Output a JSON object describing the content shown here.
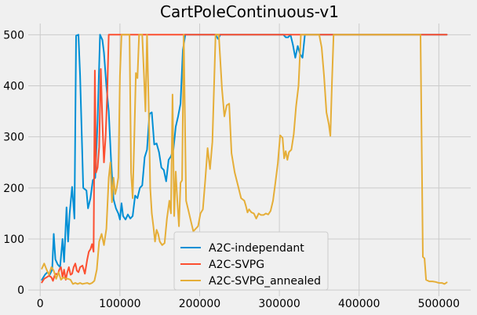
{
  "chart_data": {
    "type": "line",
    "title": "CartPoleContinuous-v1",
    "xlabel": "",
    "ylabel": "",
    "xlim": [
      -15000,
      540000
    ],
    "ylim": [
      -12,
      522
    ],
    "xticks": [
      0,
      100000,
      200000,
      300000,
      400000,
      500000
    ],
    "xtick_labels": [
      "0",
      "100000",
      "200000",
      "300000",
      "400000",
      "500000"
    ],
    "yticks": [
      0,
      100,
      200,
      300,
      400,
      500
    ],
    "ytick_labels": [
      "0",
      "100",
      "200",
      "300",
      "400",
      "500"
    ],
    "grid": true,
    "legend_position": "bottom-center",
    "series": [
      {
        "name": "A2C-independant",
        "color": "#008fd5",
        "points": [
          [
            2000,
            20
          ],
          [
            6000,
            30
          ],
          [
            9000,
            35
          ],
          [
            12000,
            30
          ],
          [
            15000,
            40
          ],
          [
            17000,
            110
          ],
          [
            19000,
            60
          ],
          [
            22000,
            50
          ],
          [
            25000,
            45
          ],
          [
            28000,
            100
          ],
          [
            30000,
            55
          ],
          [
            33000,
            162
          ],
          [
            35000,
            95
          ],
          [
            37000,
            150
          ],
          [
            40000,
            202
          ],
          [
            43000,
            140
          ],
          [
            45000,
            498
          ],
          [
            48000,
            500
          ],
          [
            50000,
            420
          ],
          [
            54000,
            200
          ],
          [
            58000,
            195
          ],
          [
            60000,
            160
          ],
          [
            63000,
            180
          ],
          [
            66000,
            215
          ],
          [
            69000,
            220
          ],
          [
            72000,
            330
          ],
          [
            75000,
            500
          ],
          [
            78000,
            490
          ],
          [
            80000,
            465
          ],
          [
            83000,
            400
          ],
          [
            86000,
            350
          ],
          [
            89000,
            250
          ],
          [
            92000,
            178
          ],
          [
            95000,
            160
          ],
          [
            98000,
            150
          ],
          [
            100000,
            138
          ],
          [
            102000,
            170
          ],
          [
            104000,
            145
          ],
          [
            107000,
            138
          ],
          [
            110000,
            148
          ],
          [
            113000,
            140
          ],
          [
            116000,
            145
          ],
          [
            119000,
            185
          ],
          [
            122000,
            180
          ],
          [
            125000,
            200
          ],
          [
            128000,
            205
          ],
          [
            131000,
            260
          ],
          [
            134000,
            275
          ],
          [
            137000,
            345
          ],
          [
            140000,
            348
          ],
          [
            143000,
            285
          ],
          [
            146000,
            287
          ],
          [
            149000,
            270
          ],
          [
            152000,
            240
          ],
          [
            155000,
            235
          ],
          [
            158000,
            213
          ],
          [
            161000,
            255
          ],
          [
            164000,
            262
          ],
          [
            167000,
            275
          ],
          [
            170000,
            320
          ],
          [
            173000,
            340
          ],
          [
            176000,
            365
          ],
          [
            179000,
            470
          ],
          [
            182000,
            500
          ],
          [
            185000,
            500
          ],
          [
            220000,
            500
          ],
          [
            223000,
            492
          ],
          [
            226000,
            500
          ],
          [
            305000,
            500
          ],
          [
            308000,
            495
          ],
          [
            311000,
            495
          ],
          [
            314000,
            500
          ],
          [
            317000,
            480
          ],
          [
            320000,
            455
          ],
          [
            323000,
            478
          ],
          [
            326000,
            462
          ],
          [
            329000,
            455
          ],
          [
            332000,
            500
          ],
          [
            510000,
            500
          ]
        ]
      },
      {
        "name": "A2C-SVPG",
        "color": "#fc4f30",
        "points": [
          [
            2000,
            15
          ],
          [
            5000,
            22
          ],
          [
            8000,
            25
          ],
          [
            11000,
            28
          ],
          [
            14000,
            25
          ],
          [
            16000,
            18
          ],
          [
            18000,
            28
          ],
          [
            20000,
            32
          ],
          [
            22000,
            30
          ],
          [
            24000,
            40
          ],
          [
            26000,
            45
          ],
          [
            28000,
            25
          ],
          [
            30000,
            40
          ],
          [
            32000,
            20
          ],
          [
            34000,
            35
          ],
          [
            36000,
            45
          ],
          [
            38000,
            30
          ],
          [
            40000,
            32
          ],
          [
            42000,
            45
          ],
          [
            44000,
            52
          ],
          [
            46000,
            38
          ],
          [
            48000,
            35
          ],
          [
            50000,
            45
          ],
          [
            53000,
            48
          ],
          [
            56000,
            32
          ],
          [
            59000,
            60
          ],
          [
            61000,
            75
          ],
          [
            63000,
            80
          ],
          [
            65000,
            90
          ],
          [
            67000,
            75
          ],
          [
            68500,
            430
          ],
          [
            70000,
            230
          ],
          [
            72000,
            240
          ],
          [
            74000,
            280
          ],
          [
            76000,
            433
          ],
          [
            78000,
            330
          ],
          [
            80000,
            250
          ],
          [
            82000,
            300
          ],
          [
            84000,
            380
          ],
          [
            86000,
            500
          ],
          [
            510000,
            500
          ]
        ]
      },
      {
        "name": "A2C-SVPG_annealed",
        "color": "#e5ae38",
        "points": [
          [
            2000,
            42
          ],
          [
            5000,
            52
          ],
          [
            8000,
            40
          ],
          [
            11000,
            30
          ],
          [
            14000,
            45
          ],
          [
            17000,
            38
          ],
          [
            20000,
            22
          ],
          [
            23000,
            35
          ],
          [
            26000,
            20
          ],
          [
            29000,
            25
          ],
          [
            32000,
            22
          ],
          [
            35000,
            22
          ],
          [
            38000,
            20
          ],
          [
            41000,
            12
          ],
          [
            44000,
            14
          ],
          [
            47000,
            12
          ],
          [
            50000,
            14
          ],
          [
            53000,
            12
          ],
          [
            56000,
            13
          ],
          [
            59000,
            14
          ],
          [
            62000,
            12
          ],
          [
            65000,
            14
          ],
          [
            68000,
            18
          ],
          [
            71000,
            40
          ],
          [
            74000,
            95
          ],
          [
            77000,
            110
          ],
          [
            80000,
            88
          ],
          [
            83000,
            120
          ],
          [
            86000,
            220
          ],
          [
            88000,
            250
          ],
          [
            90000,
            172
          ],
          [
            92000,
            220
          ],
          [
            94000,
            188
          ],
          [
            96000,
            200
          ],
          [
            98000,
            220
          ],
          [
            100000,
            420
          ],
          [
            102000,
            500
          ],
          [
            112000,
            500
          ],
          [
            114000,
            230
          ],
          [
            116000,
            180
          ],
          [
            118000,
            300
          ],
          [
            120000,
            425
          ],
          [
            122000,
            415
          ],
          [
            124000,
            500
          ],
          [
            128000,
            500
          ],
          [
            130000,
            425
          ],
          [
            132000,
            350
          ],
          [
            134000,
            500
          ],
          [
            136000,
            370
          ],
          [
            138000,
            200
          ],
          [
            140000,
            150
          ],
          [
            142000,
            125
          ],
          [
            144000,
            95
          ],
          [
            146000,
            118
          ],
          [
            148000,
            110
          ],
          [
            150000,
            95
          ],
          [
            153000,
            88
          ],
          [
            156000,
            92
          ],
          [
            159000,
            140
          ],
          [
            162000,
            175
          ],
          [
            164000,
            150
          ],
          [
            166000,
            383
          ],
          [
            168000,
            145
          ],
          [
            170000,
            232
          ],
          [
            172000,
            175
          ],
          [
            174000,
            125
          ],
          [
            176000,
            210
          ],
          [
            178000,
            215
          ],
          [
            180000,
            500
          ],
          [
            183000,
            175
          ],
          [
            186000,
            155
          ],
          [
            189000,
            135
          ],
          [
            192000,
            115
          ],
          [
            195000,
            120
          ],
          [
            198000,
            125
          ],
          [
            201000,
            150
          ],
          [
            204000,
            158
          ],
          [
            207000,
            215
          ],
          [
            210000,
            278
          ],
          [
            213000,
            237
          ],
          [
            216000,
            290
          ],
          [
            220000,
            500
          ],
          [
            224000,
            500
          ],
          [
            228000,
            395
          ],
          [
            231000,
            340
          ],
          [
            234000,
            362
          ],
          [
            237000,
            365
          ],
          [
            240000,
            268
          ],
          [
            244000,
            230
          ],
          [
            248000,
            205
          ],
          [
            252000,
            180
          ],
          [
            256000,
            175
          ],
          [
            258000,
            165
          ],
          [
            260000,
            152
          ],
          [
            262000,
            158
          ],
          [
            265000,
            152
          ],
          [
            268000,
            150
          ],
          [
            271000,
            140
          ],
          [
            274000,
            150
          ],
          [
            277000,
            147
          ],
          [
            280000,
            147
          ],
          [
            283000,
            150
          ],
          [
            286000,
            148
          ],
          [
            289000,
            155
          ],
          [
            292000,
            175
          ],
          [
            295000,
            210
          ],
          [
            298000,
            248
          ],
          [
            301000,
            303
          ],
          [
            304000,
            298
          ],
          [
            306000,
            258
          ],
          [
            308000,
            272
          ],
          [
            310000,
            255
          ],
          [
            312000,
            270
          ],
          [
            315000,
            275
          ],
          [
            318000,
            305
          ],
          [
            321000,
            360
          ],
          [
            324000,
            400
          ],
          [
            327000,
            500
          ],
          [
            350000,
            500
          ],
          [
            353000,
            475
          ],
          [
            356000,
            420
          ],
          [
            359000,
            348
          ],
          [
            362000,
            325
          ],
          [
            364000,
            302
          ],
          [
            366000,
            410
          ],
          [
            368000,
            500
          ],
          [
            477000,
            500
          ],
          [
            480000,
            65
          ],
          [
            482000,
            62
          ],
          [
            484000,
            20
          ],
          [
            488000,
            17
          ],
          [
            492000,
            17
          ],
          [
            496000,
            16
          ],
          [
            500000,
            14
          ],
          [
            504000,
            14
          ],
          [
            507000,
            12
          ],
          [
            510000,
            15
          ]
        ]
      }
    ]
  }
}
